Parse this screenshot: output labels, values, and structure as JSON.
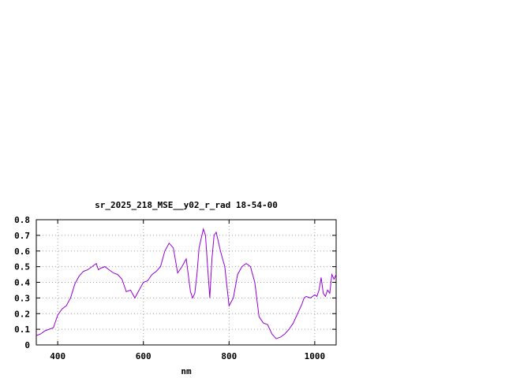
{
  "chart_data": {
    "type": "line",
    "title": "sr_2025_218_MSE__y02_r_rad 18-54-00",
    "xlabel": "nm",
    "ylabel": "",
    "xlim": [
      350,
      1050
    ],
    "ylim": [
      0,
      0.8
    ],
    "grid": true,
    "x_ticks": [
      400,
      600,
      800,
      1000
    ],
    "y_ticks": [
      0,
      0.1,
      0.2,
      0.3,
      0.4,
      0.5,
      0.6,
      0.7,
      0.8
    ],
    "x_tick_labels": [
      "400",
      "600",
      "800",
      "1000"
    ],
    "y_tick_labels": [
      "0",
      "0.1",
      "0.2",
      "0.3",
      "0.4",
      "0.5",
      "0.6",
      "0.7",
      "0.8"
    ],
    "line_color": "#9400d3",
    "series": [
      {
        "x": [
          350,
          360,
          370,
          380,
          390,
          400,
          410,
          420,
          430,
          440,
          450,
          460,
          470,
          480,
          490,
          495,
          500,
          510,
          520,
          530,
          540,
          550,
          560,
          570,
          580,
          590,
          600,
          610,
          620,
          630,
          640,
          650,
          660,
          670,
          680,
          685,
          690,
          700,
          710,
          715,
          720,
          725,
          730,
          740,
          745,
          750,
          755,
          760,
          765,
          770,
          780,
          785,
          790,
          800,
          810,
          820,
          830,
          840,
          850,
          860,
          870,
          880,
          890,
          900,
          910,
          920,
          930,
          940,
          950,
          960,
          970,
          975,
          980,
          990,
          1000,
          1005,
          1010,
          1015,
          1020,
          1025,
          1030,
          1035,
          1040,
          1045,
          1050
        ],
        "y": [
          0.06,
          0.07,
          0.09,
          0.1,
          0.11,
          0.19,
          0.23,
          0.25,
          0.3,
          0.39,
          0.44,
          0.47,
          0.48,
          0.5,
          0.52,
          0.48,
          0.49,
          0.5,
          0.48,
          0.46,
          0.45,
          0.42,
          0.34,
          0.35,
          0.3,
          0.35,
          0.4,
          0.41,
          0.45,
          0.47,
          0.5,
          0.6,
          0.65,
          0.62,
          0.46,
          0.48,
          0.5,
          0.55,
          0.34,
          0.3,
          0.33,
          0.45,
          0.62,
          0.74,
          0.7,
          0.5,
          0.3,
          0.55,
          0.7,
          0.72,
          0.6,
          0.55,
          0.5,
          0.25,
          0.3,
          0.45,
          0.5,
          0.52,
          0.5,
          0.4,
          0.18,
          0.14,
          0.13,
          0.07,
          0.04,
          0.05,
          0.07,
          0.1,
          0.14,
          0.2,
          0.26,
          0.3,
          0.31,
          0.3,
          0.32,
          0.31,
          0.35,
          0.43,
          0.33,
          0.31,
          0.35,
          0.33,
          0.45,
          0.42,
          0.45
        ]
      }
    ]
  }
}
